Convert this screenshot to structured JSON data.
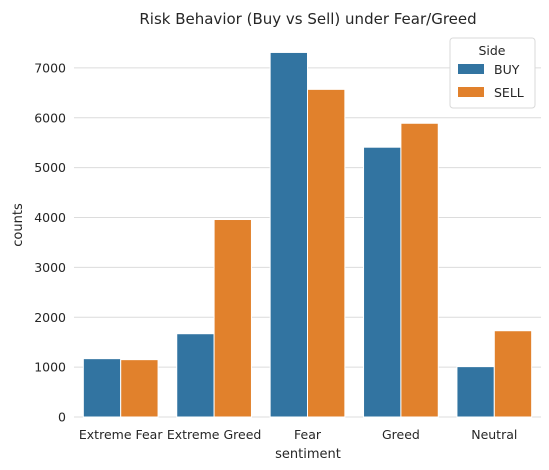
{
  "chart_data": {
    "type": "bar",
    "title": "Risk Behavior (Buy vs Sell) under Fear/Greed",
    "xlabel": "sentiment",
    "ylabel": "counts",
    "categories": [
      "Extreme Fear",
      "Extreme Greed",
      "Fear",
      "Greed",
      "Neutral"
    ],
    "series": [
      {
        "name": "BUY",
        "color": "#3274a1",
        "values": [
          1170,
          1670,
          7310,
          5410,
          1010
        ]
      },
      {
        "name": "SELL",
        "color": "#e1812c",
        "values": [
          1150,
          3960,
          6570,
          5890,
          1730
        ]
      }
    ],
    "ylim": [
      0,
      7680
    ],
    "yticks": [
      0,
      1000,
      2000,
      3000,
      4000,
      5000,
      6000,
      7000
    ],
    "grid": true,
    "legend": {
      "title": "Side",
      "placement": "top-right"
    }
  }
}
